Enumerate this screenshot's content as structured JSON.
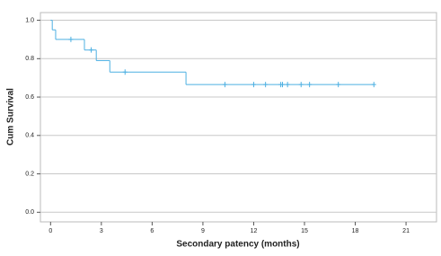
{
  "chart_data": {
    "type": "step",
    "x_label": "Secondary patency (months)",
    "y_label": "Cum Survival",
    "x": [
      0,
      0.1,
      0.3,
      2.0,
      2.7,
      3.5,
      8.0
    ],
    "values": [
      1.0,
      0.95,
      0.9,
      0.845,
      0.79,
      0.73,
      0.665
    ],
    "censor_x": [
      1.2,
      2.4,
      4.4,
      10.3,
      12.0,
      12.7,
      13.6,
      13.7,
      14.0,
      14.8,
      15.3,
      17.0,
      19.1
    ],
    "censor_values": [
      0.9,
      0.845,
      0.73,
      0.665,
      0.665,
      0.665,
      0.665,
      0.665,
      0.665,
      0.665,
      0.665,
      0.665,
      0.665
    ],
    "color": "#4db0e2",
    "xlim": [
      -0.6,
      22.8
    ],
    "ylim": [
      -0.05,
      1.04
    ],
    "xticks": [
      0,
      3,
      6,
      9,
      12,
      15,
      18,
      21
    ],
    "yticks": [
      {
        "value": 0,
        "label": "0.0"
      },
      0.2,
      0.4,
      0.6,
      0.8,
      {
        "value": 1,
        "label": "1.0"
      }
    ],
    "grid": true
  }
}
